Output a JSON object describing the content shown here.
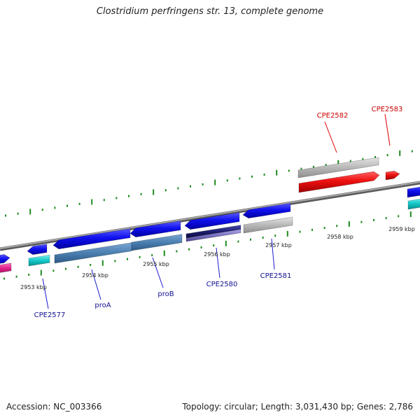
{
  "title": "Clostridium perfringens str. 13, complete genome",
  "footer": {
    "accession": "Accession: NC_003366",
    "summary": "Topology: circular; Length: 3,031,430 bp; Genes: 2,786"
  },
  "colors": {
    "forward_gene": "#1010ee",
    "product_steel": "#4a7fb0",
    "product_grey": "#b8b8b8",
    "product_navy": "#1e1e70",
    "product_purple": "#7a72c0",
    "product_cyan": "#14c8c8",
    "product_magenta": "#e0208a",
    "highlight_gene": "#ee1010",
    "highlight_grey": "#c4c4c4",
    "tick": "#1f8a1f",
    "blue_label": "#101090",
    "red_label": "#cc0000",
    "backbone": "#8c8c8c"
  },
  "scale_labels": [
    "2953 kbp",
    "2954 kbp",
    "2955 kbp",
    "2956 kbp",
    "2957 kbp",
    "2958 kbp",
    "2959 kbp"
  ],
  "gene_labels_blue": [
    "CPE2577",
    "proA",
    "proB",
    "CPE2580",
    "CPE2581"
  ],
  "gene_labels_red": [
    "CPE2582",
    "CPE2583"
  ]
}
